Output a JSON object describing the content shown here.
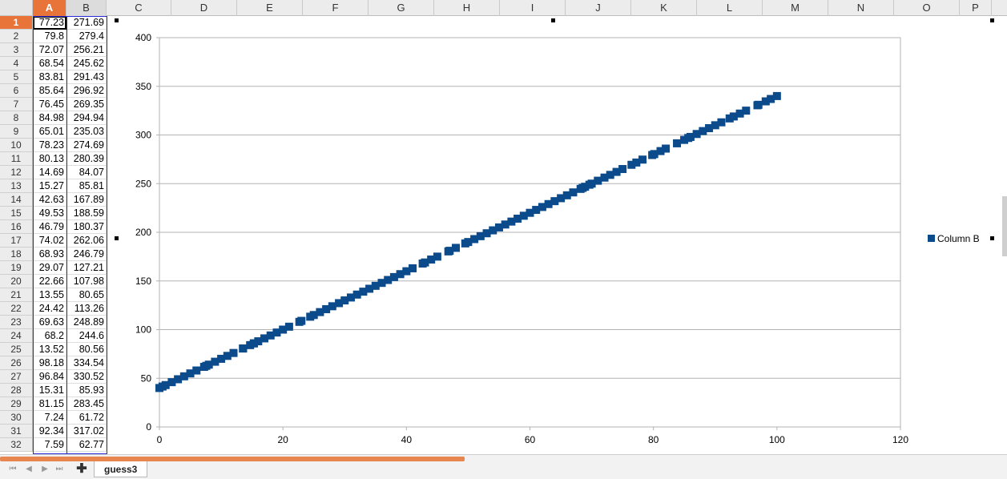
{
  "columns": [
    "A",
    "B",
    "C",
    "D",
    "E",
    "F",
    "G",
    "H",
    "I",
    "J",
    "K",
    "L",
    "M",
    "N",
    "O",
    "P"
  ],
  "rows": [
    {
      "n": "1",
      "a": "77.23",
      "b": "271.69"
    },
    {
      "n": "2",
      "a": "79.8",
      "b": "279.4"
    },
    {
      "n": "3",
      "a": "72.07",
      "b": "256.21"
    },
    {
      "n": "4",
      "a": "68.54",
      "b": "245.62"
    },
    {
      "n": "5",
      "a": "83.81",
      "b": "291.43"
    },
    {
      "n": "6",
      "a": "85.64",
      "b": "296.92"
    },
    {
      "n": "7",
      "a": "76.45",
      "b": "269.35"
    },
    {
      "n": "8",
      "a": "84.98",
      "b": "294.94"
    },
    {
      "n": "9",
      "a": "65.01",
      "b": "235.03"
    },
    {
      "n": "10",
      "a": "78.23",
      "b": "274.69"
    },
    {
      "n": "11",
      "a": "80.13",
      "b": "280.39"
    },
    {
      "n": "12",
      "a": "14.69",
      "b": "84.07"
    },
    {
      "n": "13",
      "a": "15.27",
      "b": "85.81"
    },
    {
      "n": "14",
      "a": "42.63",
      "b": "167.89"
    },
    {
      "n": "15",
      "a": "49.53",
      "b": "188.59"
    },
    {
      "n": "16",
      "a": "46.79",
      "b": "180.37"
    },
    {
      "n": "17",
      "a": "74.02",
      "b": "262.06"
    },
    {
      "n": "18",
      "a": "68.93",
      "b": "246.79"
    },
    {
      "n": "19",
      "a": "29.07",
      "b": "127.21"
    },
    {
      "n": "20",
      "a": "22.66",
      "b": "107.98"
    },
    {
      "n": "21",
      "a": "13.55",
      "b": "80.65"
    },
    {
      "n": "22",
      "a": "24.42",
      "b": "113.26"
    },
    {
      "n": "23",
      "a": "69.63",
      "b": "248.89"
    },
    {
      "n": "24",
      "a": "68.2",
      "b": "244.6"
    },
    {
      "n": "25",
      "a": "13.52",
      "b": "80.56"
    },
    {
      "n": "26",
      "a": "98.18",
      "b": "334.54"
    },
    {
      "n": "27",
      "a": "96.84",
      "b": "330.52"
    },
    {
      "n": "28",
      "a": "15.31",
      "b": "85.93"
    },
    {
      "n": "29",
      "a": "81.15",
      "b": "283.45"
    },
    {
      "n": "30",
      "a": "7.24",
      "b": "61.72"
    },
    {
      "n": "31",
      "a": "92.34",
      "b": "317.02"
    },
    {
      "n": "32",
      "a": "7.59",
      "b": "62.77"
    }
  ],
  "sheet_tab": "guess3",
  "add_sheet_symbol": "✚",
  "nav": {
    "first": "⏮",
    "prev": "◀",
    "next": "▶",
    "last": "⏭"
  },
  "colors": {
    "accent": "#e8743a",
    "series": "#0b4a8b",
    "selection": "#2a2ad4"
  },
  "chart_data": {
    "type": "scatter",
    "title": "",
    "xlabel": "",
    "ylabel": "",
    "xlim": [
      0,
      120
    ],
    "ylim": [
      0,
      400
    ],
    "xticks": [
      "0",
      "20",
      "40",
      "60",
      "80",
      "100",
      "120"
    ],
    "yticks": [
      "0",
      "50",
      "100",
      "150",
      "200",
      "250",
      "300",
      "350",
      "400"
    ],
    "grid": true,
    "legend_position": "right",
    "series": [
      {
        "name": "Column B",
        "color": "#0b4a8b",
        "x": [
          77.23,
          79.8,
          72.07,
          68.54,
          83.81,
          85.64,
          76.45,
          84.98,
          65.01,
          78.23,
          80.13,
          14.69,
          15.27,
          42.63,
          49.53,
          46.79,
          74.02,
          68.93,
          29.07,
          22.66,
          13.55,
          24.42,
          69.63,
          68.2,
          13.52,
          98.18,
          96.84,
          15.31,
          81.15,
          7.24,
          92.34,
          7.59,
          0,
          0.5,
          1,
          2,
          3,
          4,
          5,
          6,
          8,
          9,
          10,
          11,
          12,
          16,
          17,
          18,
          19,
          20,
          21,
          23,
          25,
          26,
          27,
          28,
          30,
          31,
          32,
          33,
          34,
          35,
          36,
          37,
          38,
          39,
          40,
          41,
          43,
          44,
          45,
          47,
          48,
          50,
          51,
          52,
          53,
          54,
          55,
          56,
          57,
          58,
          59,
          60,
          61,
          62,
          63,
          64,
          66,
          67,
          70,
          71,
          73,
          75,
          82,
          86,
          87,
          88,
          89,
          90,
          91,
          93,
          94,
          95,
          97,
          99,
          100
        ],
        "y": [
          271.69,
          279.4,
          256.21,
          245.62,
          291.43,
          296.92,
          269.35,
          294.94,
          235.03,
          274.69,
          280.39,
          84.07,
          85.81,
          167.89,
          188.59,
          180.37,
          262.06,
          246.79,
          127.21,
          107.98,
          80.65,
          113.26,
          248.89,
          244.6,
          80.56,
          334.54,
          330.52,
          85.93,
          283.45,
          61.72,
          317.02,
          62.77,
          40,
          41.5,
          43,
          46,
          49,
          52,
          55,
          58,
          64,
          67,
          70,
          73,
          76,
          88,
          91,
          94,
          97,
          100,
          103,
          109,
          115,
          118,
          121,
          124,
          130,
          133,
          136,
          139,
          142,
          145,
          148,
          151,
          154,
          157,
          160,
          163,
          169,
          172,
          175,
          181,
          184,
          190,
          193,
          196,
          199,
          202,
          205,
          208,
          211,
          214,
          217,
          220,
          223,
          226,
          229,
          232,
          238,
          241,
          250,
          253,
          259,
          265,
          286,
          298,
          301,
          304,
          307,
          310,
          313,
          319,
          322,
          325,
          331,
          337,
          340
        ]
      }
    ]
  }
}
